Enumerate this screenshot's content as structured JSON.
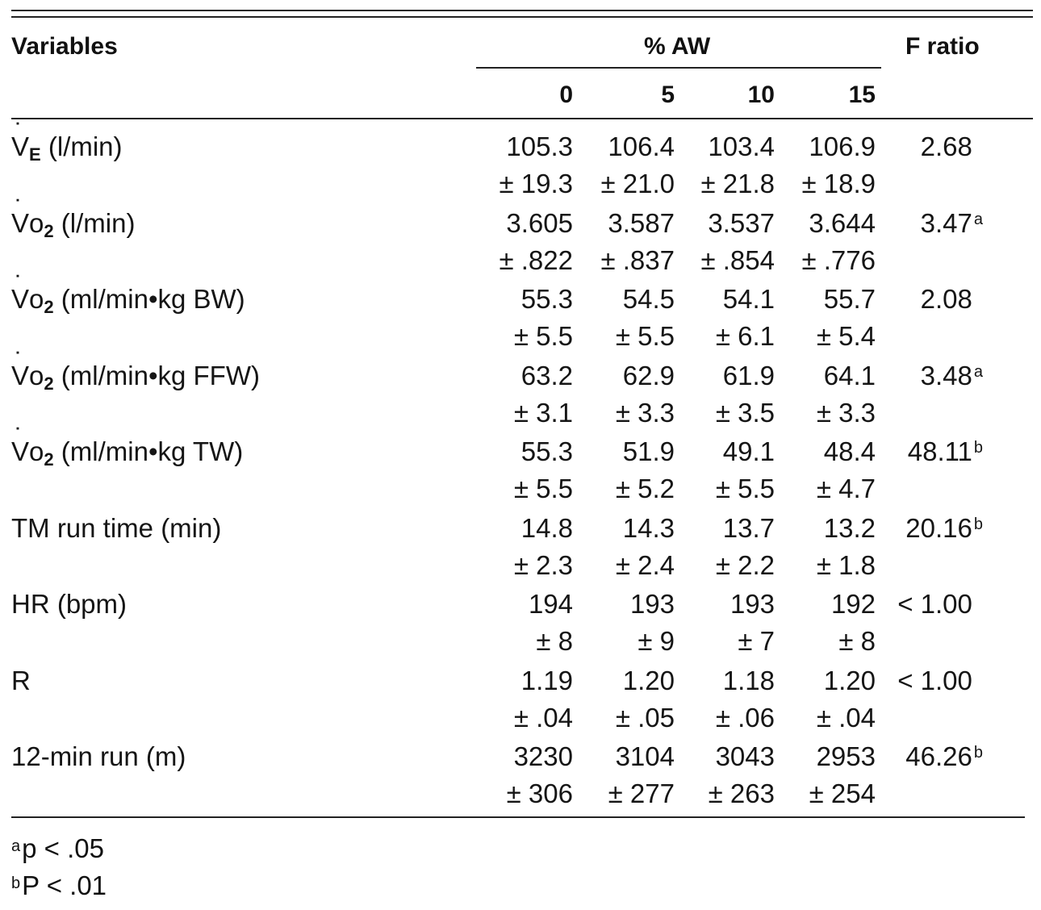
{
  "header": {
    "variables": "Variables",
    "group": "% AW",
    "f_ratio": "F ratio",
    "levels": [
      "0",
      "5",
      "10",
      "15"
    ]
  },
  "rows": [
    {
      "label_main": "V",
      "label_sub": "E",
      "label_rest": " (l/min)",
      "means": [
        "105.3",
        "106.4",
        "103.4",
        "106.9"
      ],
      "sds": [
        "± 19.3",
        "± 21.0",
        "± 21.8",
        "± 18.9"
      ],
      "f": "2.68",
      "mark": ""
    },
    {
      "label_main": "Vo",
      "label_sub": "2",
      "label_rest": " (l/min)",
      "means": [
        "3.605",
        "3.587",
        "3.537",
        "3.644"
      ],
      "sds": [
        "± .822",
        "± .837",
        "± .854",
        "± .776"
      ],
      "f": "3.47",
      "mark": "a"
    },
    {
      "label_main": "Vo",
      "label_sub": "2",
      "label_rest": " (ml/min•kg BW)",
      "means": [
        "55.3",
        "54.5",
        "54.1",
        "55.7"
      ],
      "sds": [
        "± 5.5",
        "± 5.5",
        "± 6.1",
        "± 5.4"
      ],
      "f": "2.08",
      "mark": ""
    },
    {
      "label_main": "Vo",
      "label_sub": "2",
      "label_rest": " (ml/min•kg FFW)",
      "means": [
        "63.2",
        "62.9",
        "61.9",
        "64.1"
      ],
      "sds": [
        "± 3.1",
        "± 3.3",
        "± 3.5",
        "± 3.3"
      ],
      "f": "3.48",
      "mark": "a"
    },
    {
      "label_main": "Vo",
      "label_sub": "2",
      "label_rest": " (ml/min•kg TW)",
      "means": [
        "55.3",
        "51.9",
        "49.1",
        "48.4"
      ],
      "sds": [
        "± 5.5",
        "± 5.2",
        "± 5.5",
        "± 4.7"
      ],
      "f": "48.11",
      "mark": "b"
    },
    {
      "label_main": "TM run time (min)",
      "label_sub": "",
      "label_rest": "",
      "means": [
        "14.8",
        "14.3",
        "13.7",
        "13.2"
      ],
      "sds": [
        "± 2.3",
        "± 2.4",
        "± 2.2",
        "± 1.8"
      ],
      "f": "20.16",
      "mark": "b"
    },
    {
      "label_main": "HR (bpm)",
      "label_sub": "",
      "label_rest": "",
      "means": [
        "194",
        "193",
        "193",
        "192"
      ],
      "sds": [
        "± 8",
        "± 9",
        "± 7",
        "± 8"
      ],
      "f": "< 1.00",
      "mark": ""
    },
    {
      "label_main": "R",
      "label_sub": "",
      "label_rest": "",
      "means": [
        "1.19",
        "1.20",
        "1.18",
        "1.20"
      ],
      "sds": [
        "± .04",
        "± .05",
        "± .06",
        "± .04"
      ],
      "f": "< 1.00",
      "mark": ""
    },
    {
      "label_main": "12-min run (m)",
      "label_sub": "",
      "label_rest": "",
      "means": [
        "3230",
        "3104",
        "3043",
        "2953"
      ],
      "sds": [
        "± 306",
        "± 277",
        "± 263",
        "± 254"
      ],
      "f": "46.26",
      "mark": "b"
    }
  ],
  "footnotes": [
    {
      "mark": "a",
      "text": "p < .05"
    },
    {
      "mark": "b",
      "text": "P < .01"
    }
  ]
}
